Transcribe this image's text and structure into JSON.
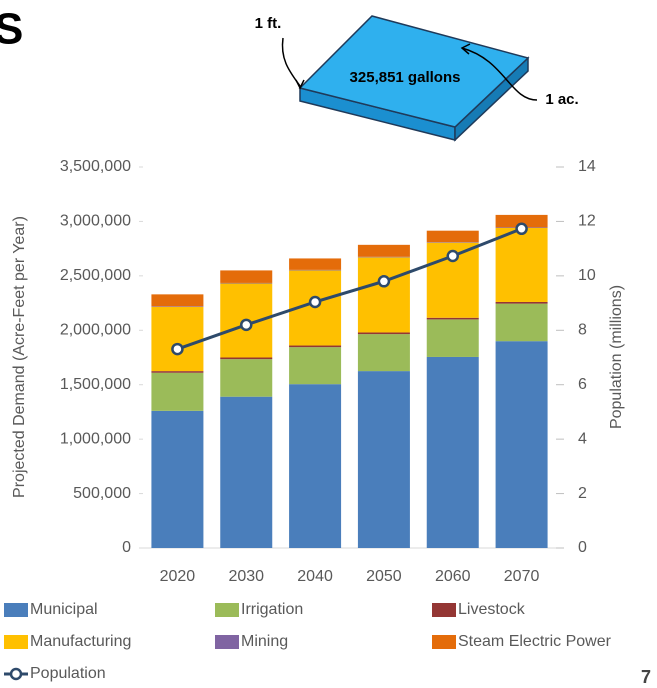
{
  "title_fragment": "S",
  "diagram": {
    "volume_label": "325,851 gallons",
    "height_label": "1 ft.",
    "area_label": "1 ac."
  },
  "page_number": "7",
  "chart_data": {
    "type": "bar",
    "y_label": "Projected Demand (Acre-Feet per Year)",
    "y2_label": "Population (millions)",
    "categories": [
      "2020",
      "2030",
      "2040",
      "2050",
      "2060",
      "2070"
    ],
    "ylim": [
      0,
      3500000
    ],
    "yticks": [
      0,
      {
        "value": 500000,
        "label": "500,000"
      },
      {
        "value": 1000000,
        "label": "1,000,000"
      },
      {
        "value": 1500000,
        "label": "1,500,000"
      },
      {
        "value": 2000000,
        "label": "2,000,000"
      },
      {
        "value": 2500000,
        "label": "2,500,000"
      },
      {
        "value": 3000000,
        "label": "3,000,000"
      },
      {
        "value": 3500000,
        "label": "3,500,000"
      }
    ],
    "y2lim": [
      0,
      14
    ],
    "y2ticks": [
      0,
      2,
      4,
      6,
      8,
      10,
      12,
      14
    ],
    "stacked": true,
    "series": [
      {
        "name": "Municipal",
        "color": "#4a7ebb",
        "values": [
          1260000,
          1390000,
          1505000,
          1625000,
          1755000,
          1900000
        ]
      },
      {
        "name": "Irrigation",
        "color": "#9bbb59",
        "values": [
          350000,
          345000,
          340000,
          340000,
          345000,
          345000
        ]
      },
      {
        "name": "Livestock",
        "color": "#943634",
        "values": [
          15000,
          15000,
          15000,
          15000,
          15000,
          15000
        ]
      },
      {
        "name": "Manufacturing",
        "color": "#ffc000",
        "values": [
          590000,
          680000,
          690000,
          690000,
          690000,
          680000
        ]
      },
      {
        "name": "Mining",
        "color": "#8064a2",
        "values": [
          5000,
          5000,
          5000,
          5000,
          5000,
          5000
        ]
      },
      {
        "name": "Steam Electric Power",
        "color": "#e46c0a",
        "values": [
          110000,
          115000,
          105000,
          110000,
          105000,
          115000
        ]
      },
      {
        "name": "Population",
        "type": "line",
        "axis": "y2",
        "color": "#2e4a6b",
        "values": [
          7.31,
          8.2,
          9.04,
          9.8,
          10.73,
          11.73
        ]
      }
    ]
  }
}
